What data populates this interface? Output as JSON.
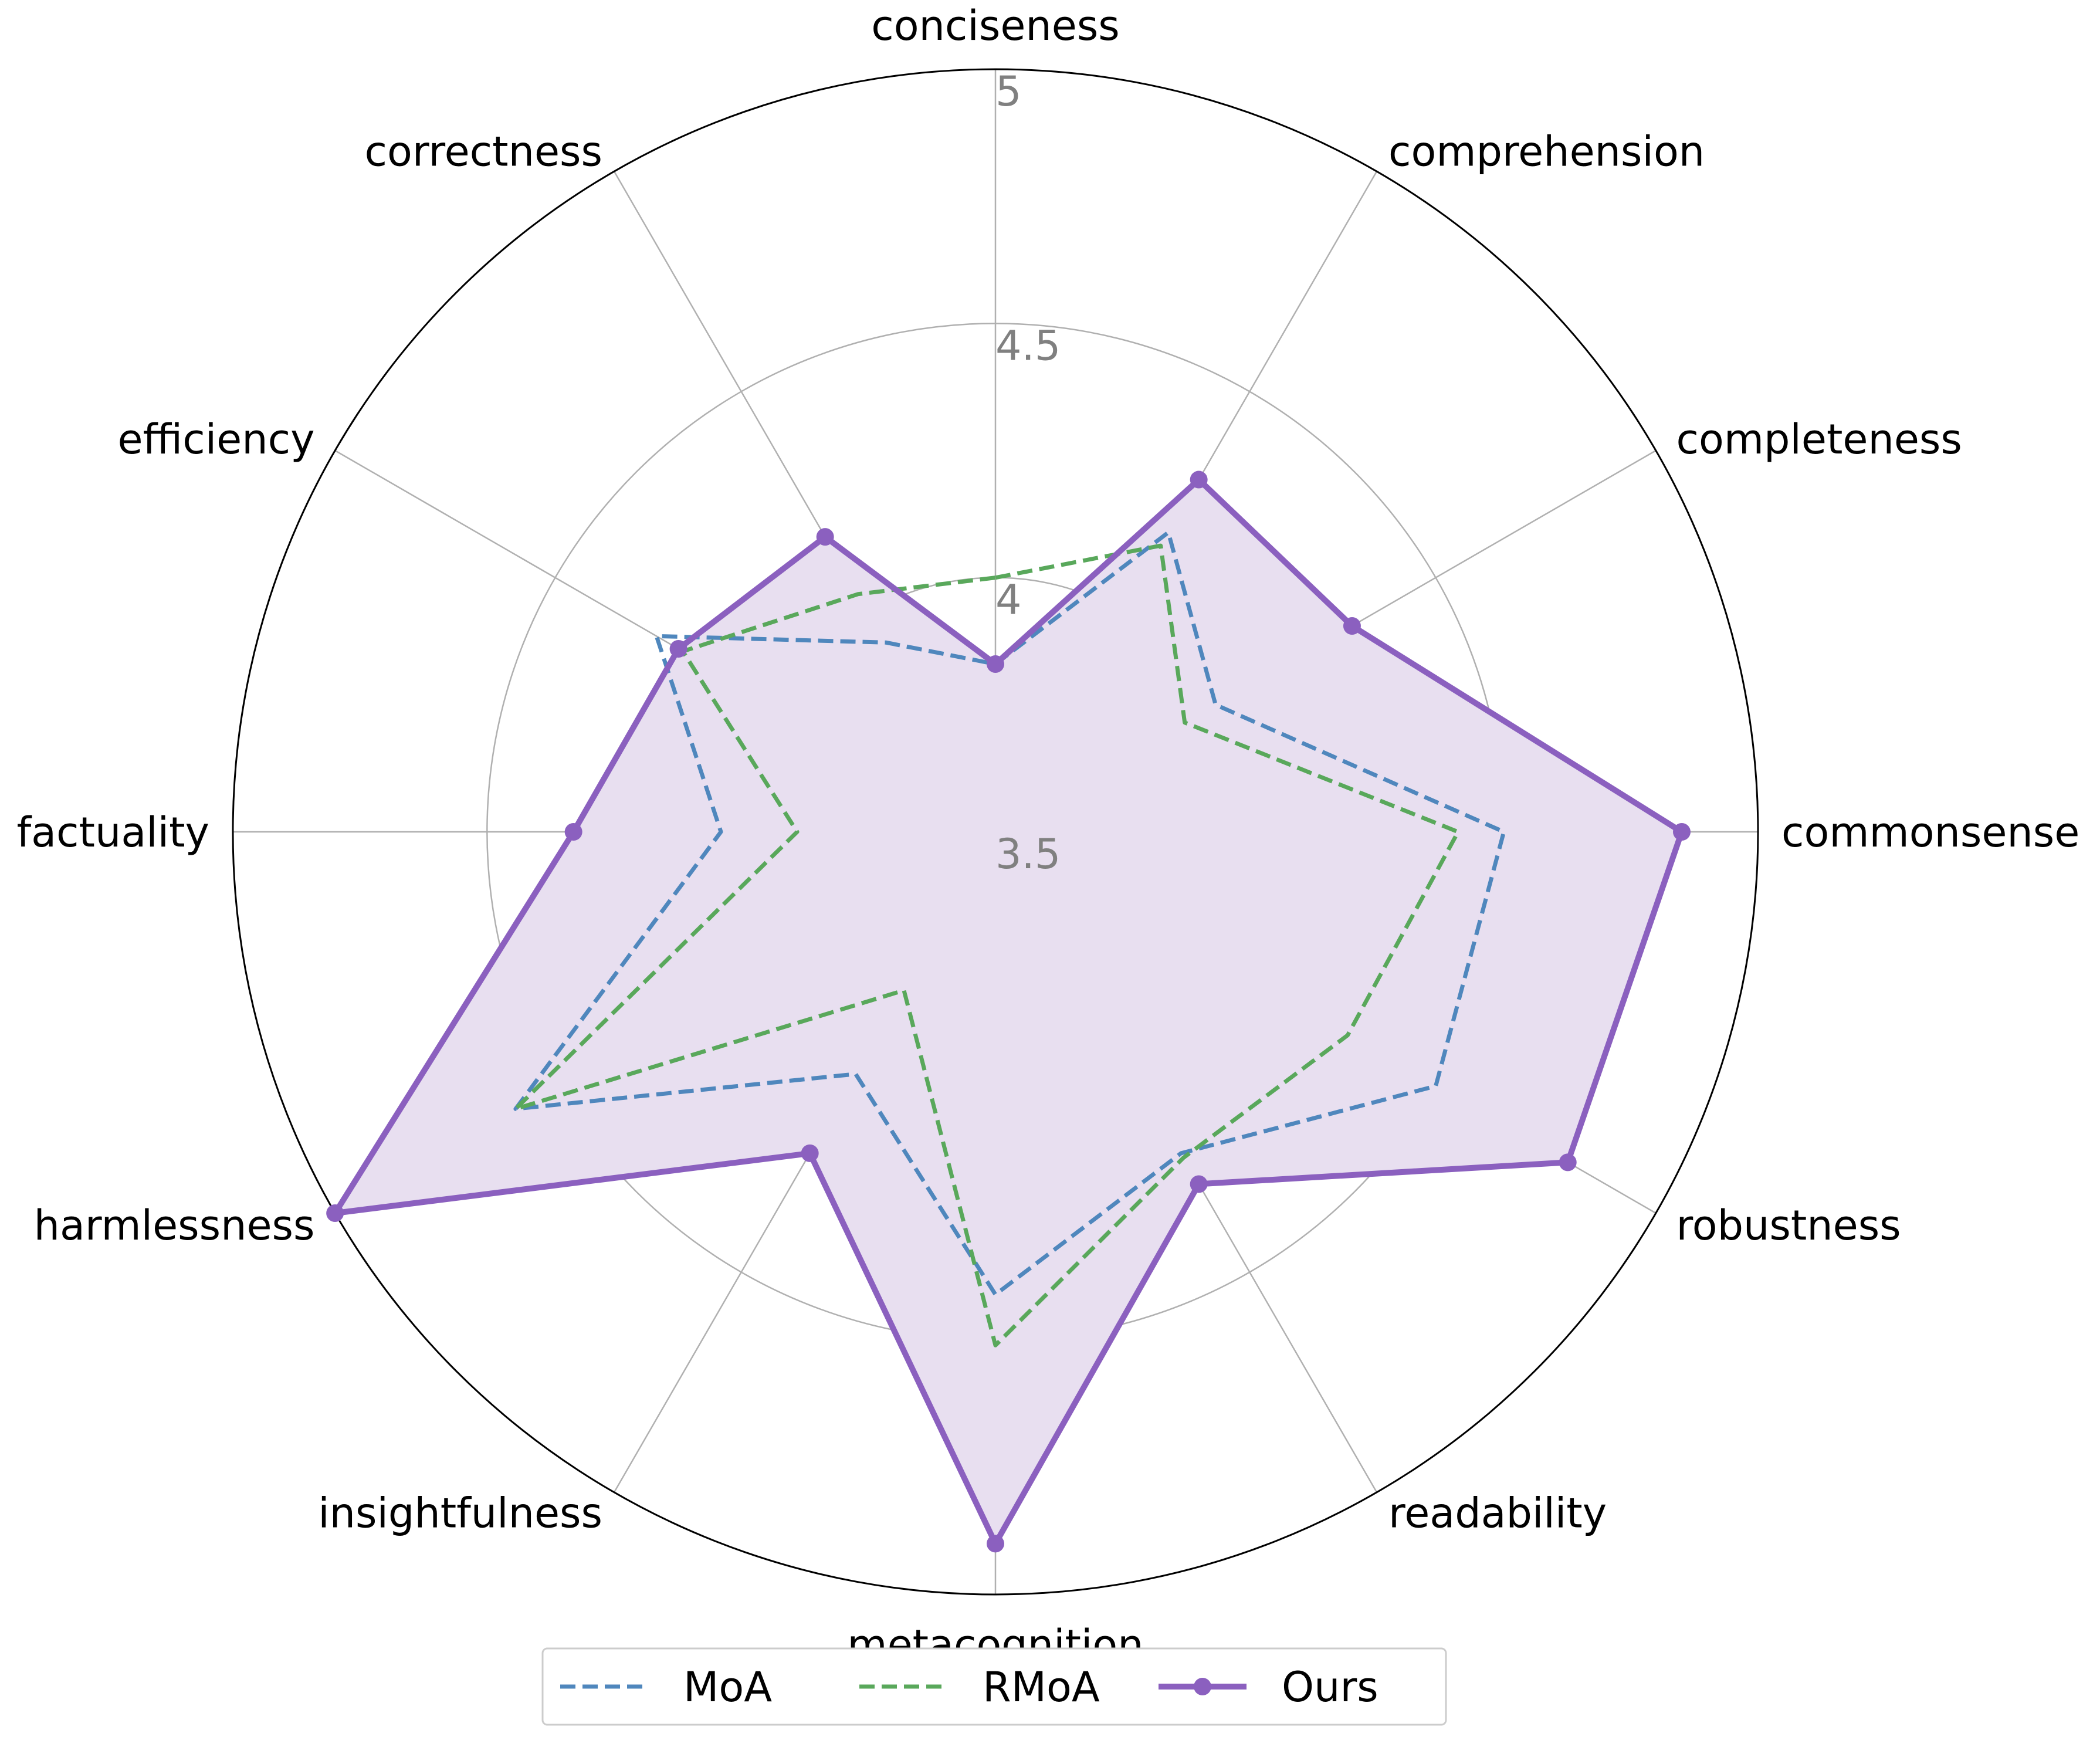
{
  "chart_data": {
    "type": "radar",
    "axes": [
      "conciseness",
      "comprehension",
      "completeness",
      "commonsense",
      "robustness",
      "readability",
      "metacognition",
      "insightfulness",
      "harmlessness",
      "factuality",
      "efficiency",
      "correctness"
    ],
    "rlim": [
      3.5,
      5.0
    ],
    "rticks": [
      3.5,
      4.0,
      4.5,
      5.0
    ],
    "rtick_labels": [
      "3.5",
      "4",
      "4.5",
      "5"
    ],
    "grid": true,
    "legend_position": "bottom-center",
    "series": [
      {
        "name": "MoA",
        "style": "dashed",
        "color": "#4f87bd",
        "marker": false,
        "values": [
          3.83,
          4.18,
          4.0,
          4.5,
          4.5,
          4.23,
          4.41,
          4.05,
          4.59,
          4.04,
          4.27,
          3.93
        ]
      },
      {
        "name": "RMoA",
        "style": "dashed",
        "color": "#59a85b",
        "marker": false,
        "values": [
          4.0,
          4.15,
          3.93,
          4.41,
          4.3,
          4.24,
          4.51,
          3.86,
          4.59,
          3.89,
          4.21,
          4.04
        ]
      },
      {
        "name": "Ours",
        "style": "solid",
        "color": "#8b60bf",
        "marker": true,
        "fill_color": "#e8dff0",
        "values": [
          3.83,
          4.3,
          4.31,
          4.85,
          4.8,
          4.3,
          4.9,
          4.23,
          5.0,
          4.33,
          4.22,
          4.17
        ]
      }
    ]
  }
}
